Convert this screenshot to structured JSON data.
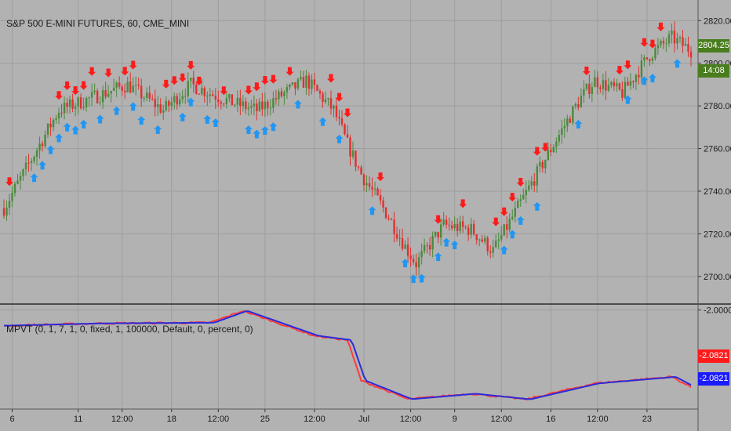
{
  "main_legend": "S&P 500 E-MINI FUTURES, 60, CME_MINI",
  "sub_legend": "MPVT (0, 1, 7, 1, 0, fixed, 1, 100000, Default, 0, percent, 0)",
  "price_tag": {
    "value": "2804.25",
    "color": "#4a7d1e"
  },
  "time_tag": {
    "value": "14:08",
    "color": "#4a7d1e"
  },
  "ind_tag_red": {
    "value": "-2.0821",
    "color": "#ff1a1a"
  },
  "ind_tag_blue": {
    "value": "-2.0821",
    "color": "#1a1aff"
  },
  "colors": {
    "up": "#4a8a3c",
    "down": "#e03030",
    "buy_arrow": "#2196f3",
    "sell_arrow": "#ff1a1a",
    "line_red": "#ff3b3b",
    "line_blue": "#2b2bd9",
    "grid": "#9e9e9e"
  },
  "chart_data": [
    {
      "type": "candlestick",
      "title": "S&P 500 E-MINI FUTURES, 60, CME_MINI",
      "ylim": [
        2690,
        2826
      ],
      "y_ticks": [
        "2820.00",
        "2800.00",
        "2780.00",
        "2760.00",
        "2740.00",
        "2720.00",
        "2700.00"
      ],
      "y_tick_values": [
        2820,
        2800,
        2780,
        2760,
        2740,
        2720,
        2700
      ],
      "last_price": 2804.25,
      "grid": true,
      "anchors_x": [
        0,
        20,
        45,
        58,
        68,
        82,
        92,
        110,
        120,
        125,
        130,
        140,
        146,
        150,
        160,
        170,
        178,
        186,
        200,
        210,
        215,
        225,
        235,
        243,
        250
      ],
      "anchors_y": [
        2732,
        2778,
        2790,
        2778,
        2790,
        2782,
        2778,
        2792,
        2778,
        2762,
        2748,
        2728,
        2714,
        2706,
        2724,
        2722,
        2712,
        2730,
        2762,
        2784,
        2792,
        2786,
        2804,
        2812,
        2806
      ]
    },
    {
      "type": "line",
      "title": "MPVT (0, 1, 7, 1, 0, fixed, 1, 100000, Default, 0, percent, 0)",
      "ylim": [
        -2.102,
        -1.997
      ],
      "y_ticks": [
        "-2.0000"
      ],
      "y_tick_values": [
        -2.0
      ],
      "last_value": -2.0821,
      "series": [
        {
          "name": "",
          "color": "#ff3b3b"
        },
        {
          "name": "",
          "color": "#2b2bd9"
        }
      ],
      "x": [
        0,
        35,
        75,
        87,
        113,
        125,
        130,
        147,
        170,
        190,
        215,
        243,
        250
      ],
      "values": [
        -2.0166,
        -2.0142,
        -2.0135,
        -2.0009,
        -2.0275,
        -2.032,
        -2.075,
        -2.0948,
        -2.089,
        -2.095,
        -2.078,
        -2.071,
        -2.0821
      ]
    }
  ],
  "x_axis": {
    "ticks": [
      {
        "label": "6",
        "x": 3
      },
      {
        "label": "11",
        "x": 27
      },
      {
        "label": "12:00",
        "x": 43
      },
      {
        "label": "18",
        "x": 61
      },
      {
        "label": "12:00",
        "x": 78
      },
      {
        "label": "25",
        "x": 95
      },
      {
        "label": "12:00",
        "x": 113
      },
      {
        "label": "Jul",
        "x": 131
      },
      {
        "label": "12:00",
        "x": 148
      },
      {
        "label": "9",
        "x": 164
      },
      {
        "label": "12:00",
        "x": 181
      },
      {
        "label": "16",
        "x": 199
      },
      {
        "label": "12:00",
        "x": 216
      },
      {
        "label": "23",
        "x": 234
      }
    ]
  }
}
